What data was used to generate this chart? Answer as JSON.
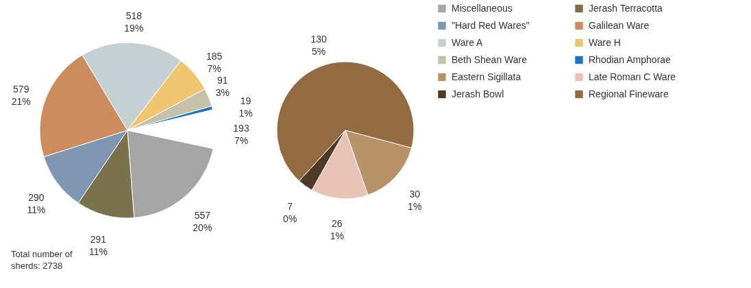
{
  "chart_data": [
    {
      "type": "pie",
      "categories": [
        "Miscellaneous",
        "Jerash Terracotta",
        "\"Hard Red Wares\"",
        "Galilean Ware",
        "Ware A",
        "Ware H",
        "Beth Shean Ware",
        "Rhodian Amphorae",
        null
      ],
      "values": [
        557,
        291,
        290,
        579,
        518,
        185,
        91,
        19,
        193
      ],
      "colors": [
        "#a5a5a5",
        "#79724c",
        "#7f96b2",
        "#cc8c5e",
        "#c5d0d3",
        "#efc66f",
        "#c6c0a8",
        "#1f74c1",
        "#ffffff"
      ],
      "value_labels": [
        "557\n20%",
        "291\n11%",
        "290\n11%",
        "579\n21%",
        "518\n19%",
        "185\n7%",
        "91\n3%",
        "19\n1%",
        "193\n7%"
      ],
      "legend": "right",
      "annotations": [
        "Total number of\nsherds: 2738"
      ]
    },
    {
      "type": "pie",
      "categories": [
        "Eastern Sigillata",
        "Late Roman C Ware",
        "Jerash Bowl",
        "Regional Fineware"
      ],
      "values": [
        30,
        26,
        7,
        130
      ],
      "colors": [
        "#b8936a",
        "#e6c3b5",
        "#4f3a26",
        "#926b42"
      ],
      "value_labels": [
        "30\n1%",
        "26\n1%",
        "7\n0%",
        "130\n5%"
      ],
      "legend": "right"
    }
  ]
}
